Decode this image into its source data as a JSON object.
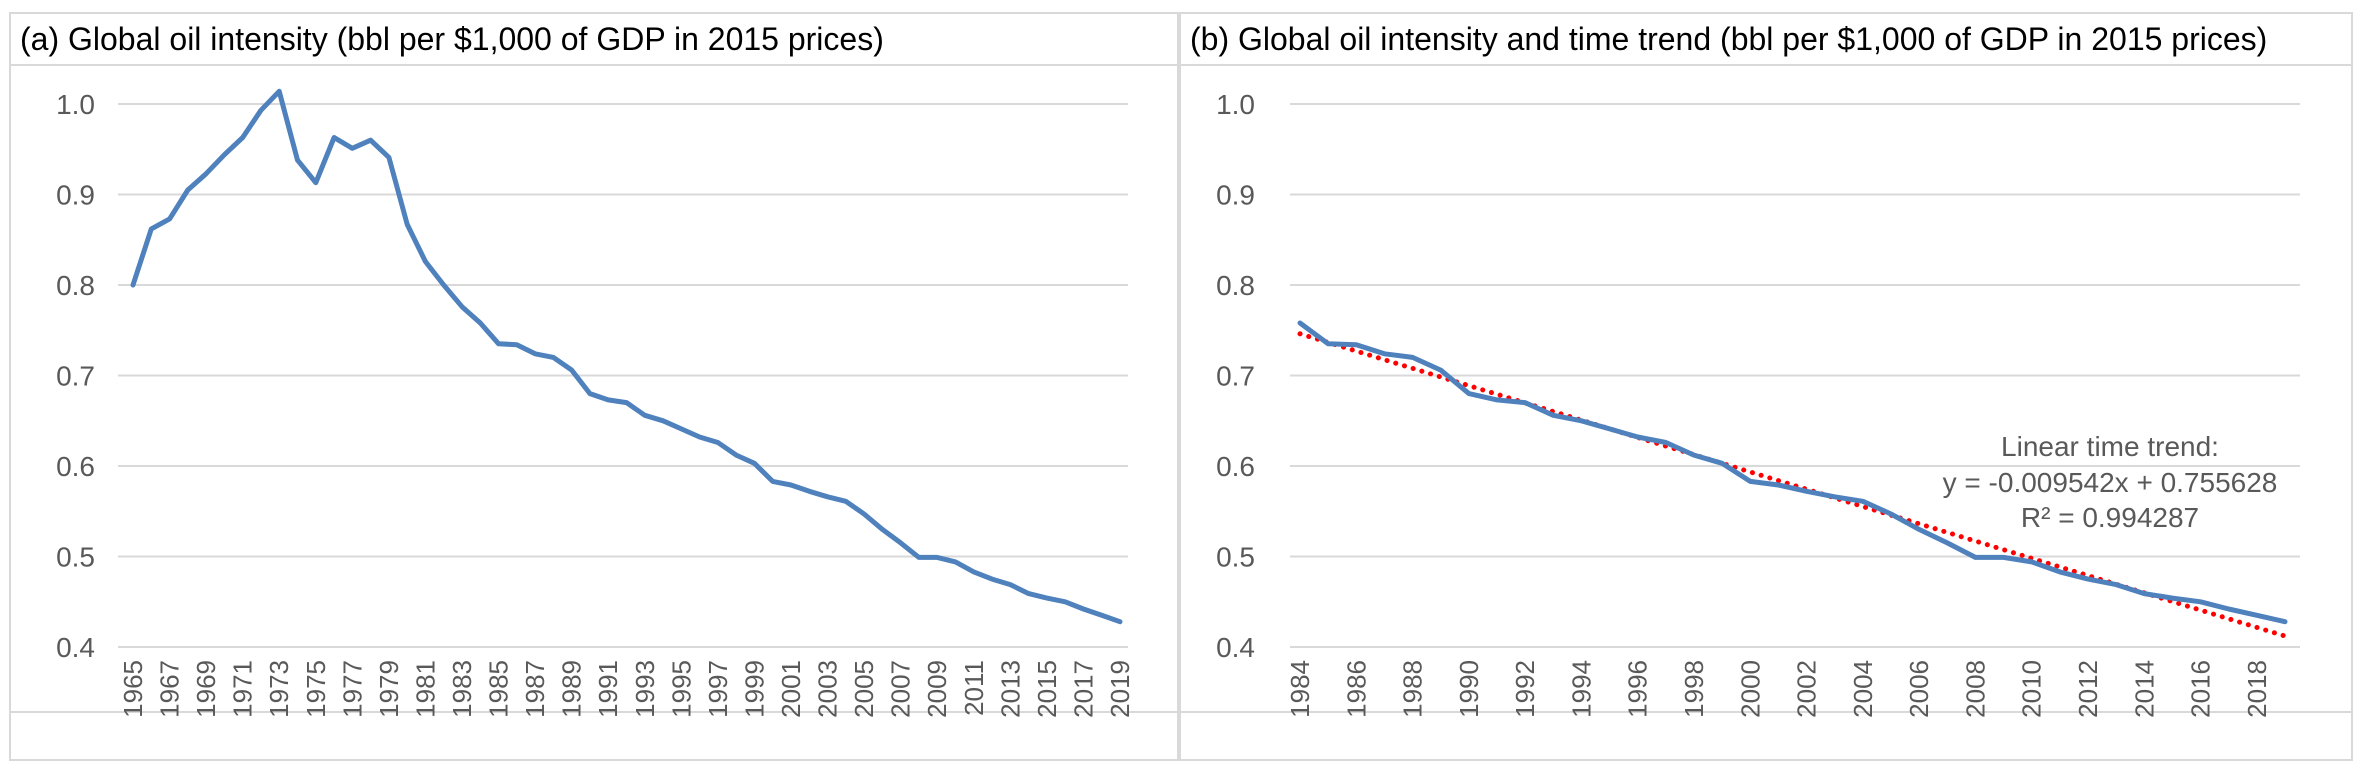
{
  "colors": {
    "series": "#4f81bd",
    "trend": "#ff0000",
    "grid": "#d9d9d9",
    "border": "#d9d9d9",
    "text": "#595959"
  },
  "chart_data": [
    {
      "type": "line",
      "title": "(a) Global oil intensity (bbl per $1,000 of GDP in 2015 prices)",
      "xlabel": "",
      "ylabel": "",
      "ylim": [
        0.4,
        1.0
      ],
      "yticks": [
        "0.4",
        "0.5",
        "0.6",
        "0.7",
        "0.8",
        "0.9",
        "1.0"
      ],
      "xticks": [
        "1965",
        "1967",
        "1969",
        "1971",
        "1973",
        "1975",
        "1977",
        "1979",
        "1981",
        "1983",
        "1985",
        "1987",
        "1989",
        "1991",
        "1993",
        "1995",
        "1997",
        "1999",
        "2001",
        "2003",
        "2005",
        "2007",
        "2009",
        "2011",
        "2013",
        "2015",
        "2017",
        "2019"
      ],
      "grid": true,
      "legend": "none",
      "series": [
        {
          "x": [
            1965,
            1966,
            1967,
            1968,
            1969,
            1970,
            1971,
            1972,
            1973,
            1974,
            1975,
            1976,
            1977,
            1978,
            1979,
            1980,
            1981,
            1982,
            1983,
            1984,
            1985,
            1986,
            1987,
            1988,
            1989,
            1990,
            1991,
            1992,
            1993,
            1994,
            1995,
            1996,
            1997,
            1998,
            1999,
            2000,
            2001,
            2002,
            2003,
            2004,
            2005,
            2006,
            2007,
            2008,
            2009,
            2010,
            2011,
            2012,
            2013,
            2014,
            2015,
            2016,
            2017,
            2018,
            2019
          ],
          "values": [
            0.8,
            0.862,
            0.873,
            0.905,
            0.923,
            0.944,
            0.963,
            0.993,
            1.014,
            0.938,
            0.913,
            0.963,
            0.951,
            0.96,
            0.941,
            0.867,
            0.826,
            0.8,
            0.776,
            0.758,
            0.735,
            0.734,
            0.724,
            0.72,
            0.706,
            0.68,
            0.673,
            0.67,
            0.656,
            0.65,
            0.641,
            0.632,
            0.626,
            0.612,
            0.603,
            0.583,
            0.579,
            0.572,
            0.566,
            0.561,
            0.547,
            0.53,
            0.515,
            0.499,
            0.499,
            0.494,
            0.483,
            0.475,
            0.469,
            0.459,
            0.454,
            0.45,
            0.442,
            0.435,
            0.428
          ]
        }
      ]
    },
    {
      "type": "line",
      "title": "(b) Global oil intensity and time trend (bbl per $1,000 of GDP in 2015 prices)",
      "xlabel": "",
      "ylabel": "",
      "ylim": [
        0.4,
        1.0
      ],
      "yticks": [
        "0.4",
        "0.5",
        "0.6",
        "0.7",
        "0.8",
        "0.9",
        "1.0"
      ],
      "xticks": [
        "1984",
        "1986",
        "1988",
        "1990",
        "1992",
        "1994",
        "1996",
        "1998",
        "2000",
        "2002",
        "2004",
        "2006",
        "2008",
        "2010",
        "2012",
        "2014",
        "2016",
        "2018"
      ],
      "grid": true,
      "legend": "none",
      "series": [
        {
          "x": [
            1984,
            1985,
            1986,
            1987,
            1988,
            1989,
            1990,
            1991,
            1992,
            1993,
            1994,
            1995,
            1996,
            1997,
            1998,
            1999,
            2000,
            2001,
            2002,
            2003,
            2004,
            2005,
            2006,
            2007,
            2008,
            2009,
            2010,
            2011,
            2012,
            2013,
            2014,
            2015,
            2016,
            2017,
            2018,
            2019
          ],
          "values": [
            0.758,
            0.735,
            0.734,
            0.724,
            0.72,
            0.706,
            0.68,
            0.673,
            0.67,
            0.656,
            0.65,
            0.641,
            0.632,
            0.626,
            0.612,
            0.603,
            0.583,
            0.579,
            0.572,
            0.566,
            0.561,
            0.547,
            0.53,
            0.515,
            0.499,
            0.499,
            0.494,
            0.483,
            0.475,
            0.469,
            0.459,
            0.454,
            0.45,
            0.442,
            0.435,
            0.428
          ]
        }
      ],
      "trend": {
        "slope": -0.009542,
        "intercept": 0.755628,
        "x_start": 1984,
        "x_end": 2019,
        "x_origin": 1983
      },
      "annotation": [
        "Linear time trend:",
        "y = -0.009542x + 0.755628",
        "R² = 0.994287"
      ]
    }
  ]
}
